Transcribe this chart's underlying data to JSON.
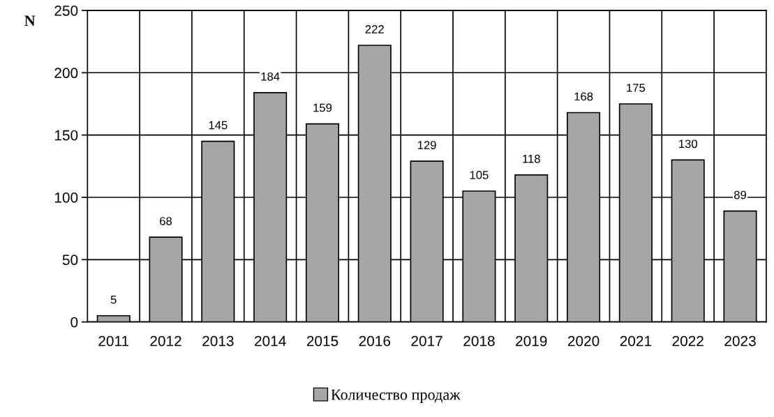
{
  "chart_data": {
    "type": "bar",
    "ylabel": "N",
    "categories": [
      "2011",
      "2012",
      "2013",
      "2014",
      "2015",
      "2016",
      "2017",
      "2018",
      "2019",
      "2020",
      "2021",
      "2022",
      "2023"
    ],
    "series": [
      {
        "name": "Количество продаж",
        "color": "#a6a6a6",
        "values": [
          5,
          68,
          145,
          184,
          159,
          222,
          129,
          105,
          118,
          168,
          175,
          130,
          89
        ]
      }
    ],
    "ylim": [
      0,
      250
    ],
    "yticks": [
      0,
      50,
      100,
      150,
      200,
      250
    ],
    "grid": true,
    "legend": "bottom",
    "data_labels": true
  }
}
